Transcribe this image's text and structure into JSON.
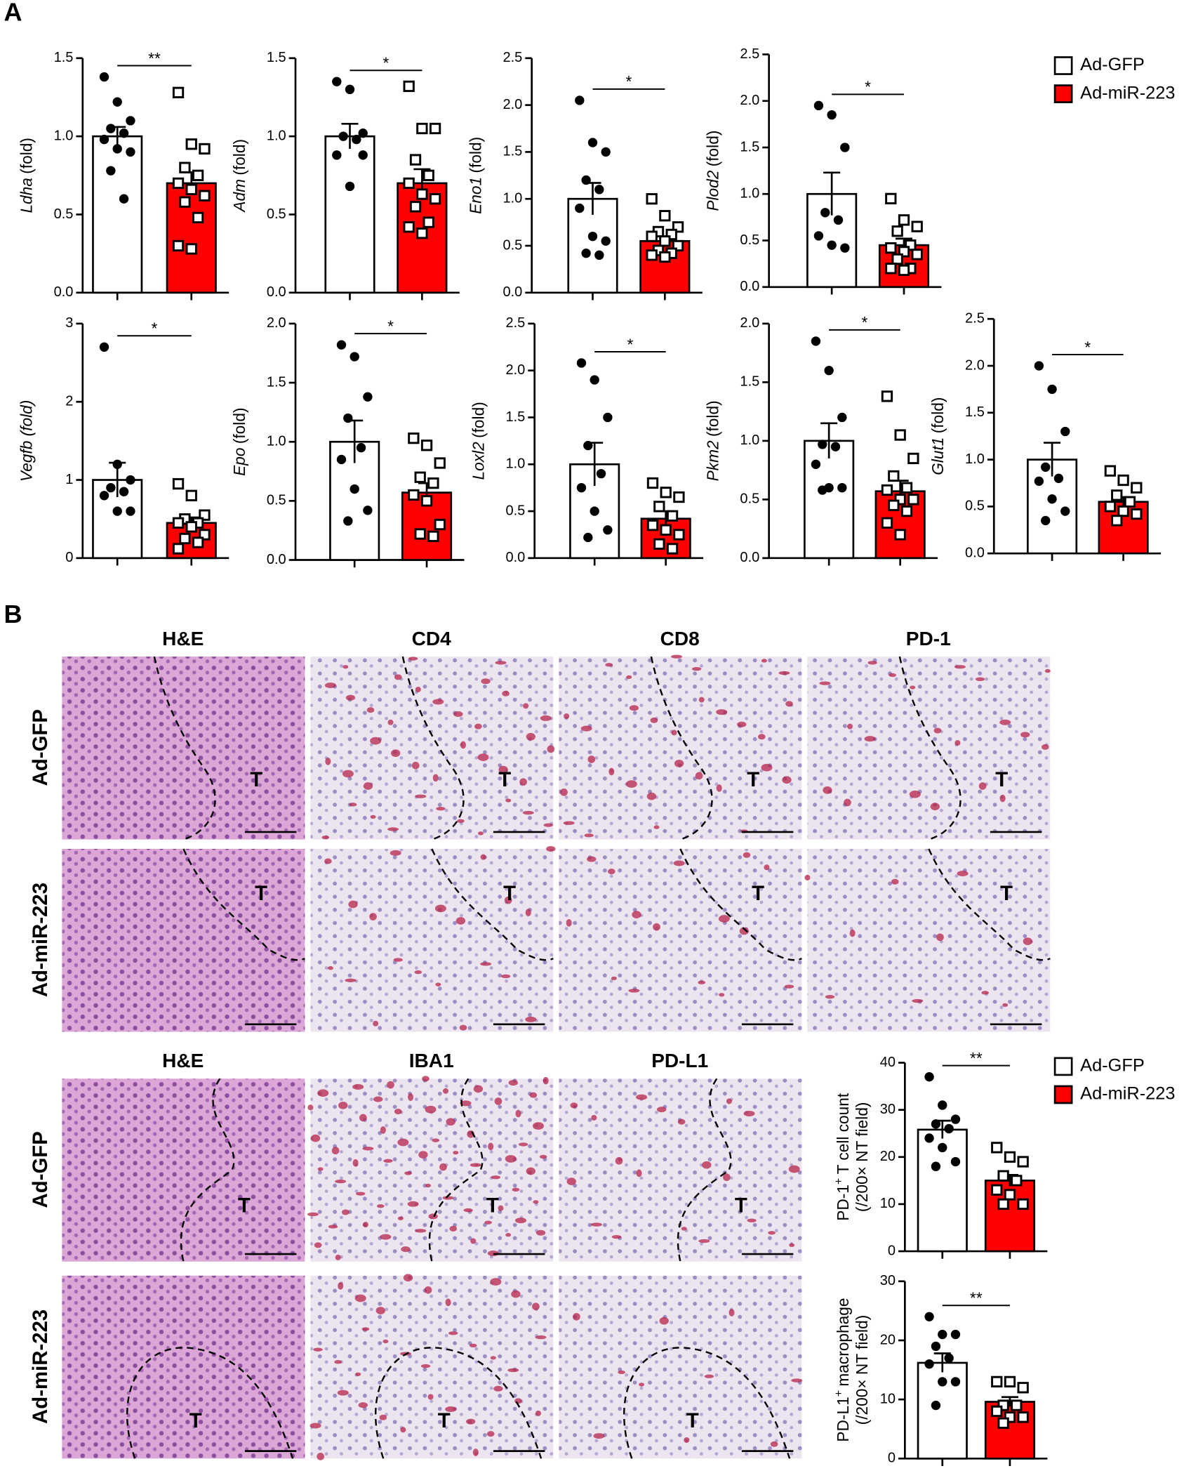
{
  "panel_labels": {
    "a": "A",
    "b": "B"
  },
  "histology": {
    "top": {
      "columns": [
        "H&E",
        "CD4",
        "CD8",
        "PD-1"
      ],
      "rows": [
        "Ad-GFP",
        "Ad-miR-223"
      ]
    },
    "bottom": {
      "columns": [
        "H&E",
        "IBA1",
        "PD-L1"
      ],
      "rows": [
        "Ad-GFP",
        "Ad-miR-223"
      ]
    },
    "tumor_label": "T"
  },
  "chart_data": [
    {
      "type": "bar",
      "ylabel_italic": "Ldha",
      "ylabel": "(fold)",
      "annotation": "**",
      "ylim": [
        0,
        1.5
      ],
      "yticks": [
        {
          "value": 0,
          "label": "0.0"
        },
        0.5,
        {
          "value": 1,
          "label": "1.0"
        },
        1.5
      ],
      "series": [
        {
          "name": "Ad-GFP",
          "color": "#ffffff",
          "values": [
            1.0
          ],
          "errors": [
            0.06
          ],
          "points": [
            1.38,
            1.22,
            1.1,
            1.05,
            1.02,
            0.98,
            0.92,
            0.9,
            0.78,
            0.6
          ]
        },
        {
          "name": "Ad-miR-223",
          "color": "#ff0000",
          "values": [
            0.7
          ],
          "errors": [
            0.07
          ],
          "points": [
            1.28,
            0.95,
            0.92,
            0.8,
            0.75,
            0.7,
            0.66,
            0.62,
            0.58,
            0.48,
            0.3,
            0.28
          ]
        }
      ]
    },
    {
      "type": "bar",
      "ylabel_italic": "Adm",
      "ylabel": "(fold)",
      "annotation": "*",
      "ylim": [
        0,
        1.5
      ],
      "yticks": [
        {
          "value": 0,
          "label": "0.0"
        },
        0.5,
        {
          "value": 1,
          "label": "1.0"
        },
        1.5
      ],
      "series": [
        {
          "name": "Ad-GFP",
          "color": "#ffffff",
          "values": [
            1.0
          ],
          "errors": [
            0.08
          ],
          "points": [
            1.35,
            1.3,
            1.02,
            1.0,
            0.98,
            0.88,
            0.68,
            0.88
          ]
        },
        {
          "name": "Ad-miR-223",
          "color": "#ff0000",
          "values": [
            0.7
          ],
          "errors": [
            0.09
          ],
          "points": [
            1.32,
            1.05,
            1.05,
            0.85,
            0.75,
            0.7,
            0.63,
            0.6,
            0.55,
            0.45,
            0.42,
            0.38
          ]
        }
      ]
    },
    {
      "type": "bar",
      "ylabel_italic": "Eno1",
      "ylabel": "(fold)",
      "annotation": "*",
      "ylim": [
        0,
        2.5
      ],
      "yticks": [
        {
          "value": 0,
          "label": "0.0"
        },
        0.5,
        {
          "value": 1,
          "label": "1.0"
        },
        1.5,
        {
          "value": 2,
          "label": "2.0"
        },
        2.5
      ],
      "series": [
        {
          "name": "Ad-GFP",
          "color": "#ffffff",
          "values": [
            1.0
          ],
          "errors": [
            0.17
          ],
          "points": [
            2.05,
            1.6,
            1.5,
            1.2,
            1.1,
            0.9,
            0.6,
            0.55,
            0.42,
            0.4
          ]
        },
        {
          "name": "Ad-miR-223",
          "color": "#ff0000",
          "values": [
            0.55
          ],
          "errors": [
            0.05
          ],
          "points": [
            1.0,
            0.82,
            0.7,
            0.65,
            0.62,
            0.6,
            0.55,
            0.5,
            0.45,
            0.42,
            0.4,
            0.38
          ]
        }
      ]
    },
    {
      "type": "bar",
      "ylabel_italic": "Plod2",
      "ylabel": "(fold)",
      "annotation": "*",
      "ylim": [
        0,
        2.5
      ],
      "yticks": [
        {
          "value": 0,
          "label": "0.0"
        },
        0.5,
        {
          "value": 1,
          "label": "1.0"
        },
        1.5,
        {
          "value": 2,
          "label": "2.0"
        },
        2.5
      ],
      "series": [
        {
          "name": "Ad-GFP",
          "color": "#ffffff",
          "values": [
            1.0
          ],
          "errors": [
            0.23
          ],
          "points": [
            1.95,
            1.85,
            1.5,
            0.8,
            0.72,
            0.55,
            0.45,
            0.42
          ]
        },
        {
          "name": "Ad-miR-223",
          "color": "#ff0000",
          "values": [
            0.45
          ],
          "errors": [
            0.07
          ],
          "points": [
            0.95,
            0.72,
            0.65,
            0.6,
            0.45,
            0.42,
            0.38,
            0.35,
            0.3,
            0.2,
            0.2,
            0.18
          ]
        }
      ]
    },
    {
      "type": "bar",
      "ylabel_italic": "Vegfb (fold)",
      "annotation": "*",
      "ylim": [
        0,
        3
      ],
      "yticks": [
        0,
        1,
        2,
        3
      ],
      "series": [
        {
          "name": "Ad-GFP",
          "color": "#ffffff",
          "values": [
            1.0
          ],
          "errors": [
            0.22
          ],
          "points": [
            2.7,
            1.2,
            1.0,
            0.9,
            0.85,
            0.8,
            0.6,
            0.6
          ]
        },
        {
          "name": "Ad-miR-223",
          "color": "#ff0000",
          "values": [
            0.45
          ],
          "errors": [
            0.07
          ],
          "points": [
            0.95,
            0.8,
            0.55,
            0.5,
            0.45,
            0.45,
            0.4,
            0.3,
            0.25,
            0.2,
            0.12
          ]
        }
      ]
    },
    {
      "type": "bar",
      "ylabel_italic": "Epo",
      "ylabel": "(fold)",
      "annotation": "*",
      "ylim": [
        0,
        2
      ],
      "yticks": [
        {
          "value": 0,
          "label": "0.0"
        },
        0.5,
        {
          "value": 1,
          "label": "1.0"
        },
        1.5,
        {
          "value": 2,
          "label": "2.0"
        }
      ],
      "series": [
        {
          "name": "Ad-GFP",
          "color": "#ffffff",
          "values": [
            1.0
          ],
          "errors": [
            0.18
          ],
          "points": [
            1.82,
            1.72,
            1.38,
            1.2,
            0.95,
            0.85,
            0.6,
            0.42,
            0.33
          ]
        },
        {
          "name": "Ad-miR-223",
          "color": "#ff0000",
          "values": [
            0.57
          ],
          "errors": [
            0.08
          ],
          "points": [
            1.03,
            0.97,
            0.82,
            0.7,
            0.65,
            0.55,
            0.5,
            0.3,
            0.22,
            0.2
          ]
        }
      ]
    },
    {
      "type": "bar",
      "ylabel_italic": "Loxl2",
      "ylabel": "(fold)",
      "annotation": "*",
      "ylim": [
        0,
        2.5
      ],
      "yticks": [
        {
          "value": 0,
          "label": "0.0"
        },
        0.5,
        {
          "value": 1,
          "label": "1.0"
        },
        1.5,
        {
          "value": 2,
          "label": "2.0"
        },
        2.5
      ],
      "series": [
        {
          "name": "Ad-GFP",
          "color": "#ffffff",
          "values": [
            1.0
          ],
          "errors": [
            0.23
          ],
          "points": [
            2.08,
            1.9,
            1.5,
            1.2,
            0.9,
            0.75,
            0.5,
            0.3,
            0.22
          ]
        },
        {
          "name": "Ad-miR-223",
          "color": "#ff0000",
          "values": [
            0.42
          ],
          "errors": [
            0.08
          ],
          "points": [
            0.8,
            0.7,
            0.65,
            0.55,
            0.45,
            0.35,
            0.3,
            0.25,
            0.15,
            0.1
          ]
        }
      ]
    },
    {
      "type": "bar",
      "ylabel_italic": "Pkm2",
      "ylabel": "(fold)",
      "annotation": "*",
      "ylim": [
        0,
        2
      ],
      "yticks": [
        {
          "value": 0,
          "label": "0.0"
        },
        0.5,
        {
          "value": 1,
          "label": "1.0"
        },
        1.5,
        {
          "value": 2,
          "label": "2.0"
        }
      ],
      "series": [
        {
          "name": "Ad-GFP",
          "color": "#ffffff",
          "values": [
            1.0
          ],
          "errors": [
            0.15
          ],
          "points": [
            1.85,
            1.6,
            1.2,
            0.97,
            0.95,
            0.8,
            0.6,
            0.6,
            0.58
          ]
        },
        {
          "name": "Ad-miR-223",
          "color": "#ff0000",
          "values": [
            0.57
          ],
          "errors": [
            0.09
          ],
          "points": [
            1.38,
            1.05,
            0.85,
            0.7,
            0.6,
            0.58,
            0.5,
            0.5,
            0.45,
            0.4,
            0.3,
            0.2
          ]
        }
      ]
    },
    {
      "type": "bar",
      "ylabel_italic": "Glut1",
      "ylabel": "(fold)",
      "annotation": "*",
      "ylim": [
        0,
        2.5
      ],
      "yticks": [
        {
          "value": 0,
          "label": "0.0"
        },
        0.5,
        {
          "value": 1,
          "label": "1.0"
        },
        1.5,
        {
          "value": 2,
          "label": "2.0"
        },
        2.5
      ],
      "series": [
        {
          "name": "Ad-GFP",
          "color": "#ffffff",
          "values": [
            1.0
          ],
          "errors": [
            0.18
          ],
          "points": [
            2.0,
            1.75,
            1.3,
            0.92,
            0.8,
            0.77,
            0.58,
            0.45,
            0.35
          ]
        },
        {
          "name": "Ad-miR-223",
          "color": "#ff0000",
          "values": [
            0.55
          ],
          "errors": [
            0.05
          ],
          "points": [
            0.88,
            0.78,
            0.7,
            0.62,
            0.55,
            0.5,
            0.45,
            0.42,
            0.35
          ]
        }
      ]
    },
    {
      "type": "bar",
      "ylabel": "PD-1",
      "ylabel_sup": "+",
      "ylabel_rest": "T cell count",
      "ylabel2": "(/200× NT field)",
      "annotation": "**",
      "ylim": [
        0,
        40
      ],
      "yticks": [
        0,
        10,
        20,
        30,
        40
      ],
      "series": [
        {
          "name": "Ad-GFP",
          "color": "#ffffff",
          "values": [
            25.8
          ],
          "errors": [
            1.9
          ],
          "points": [
            37,
            31,
            28,
            27,
            26,
            24,
            22,
            19,
            18
          ]
        },
        {
          "name": "Ad-miR-223",
          "color": "#ff0000",
          "values": [
            15
          ],
          "errors": [
            1.2
          ],
          "points": [
            22,
            20,
            19,
            16,
            15,
            13,
            12,
            10,
            10
          ]
        }
      ]
    },
    {
      "type": "bar",
      "ylabel": "PD-L1",
      "ylabel_sup": "+",
      "ylabel_rest": "macrophage",
      "ylabel2": "(/200× NT field)",
      "annotation": "**",
      "ylim": [
        0,
        30
      ],
      "yticks": [
        0,
        10,
        20,
        30
      ],
      "series": [
        {
          "name": "Ad-GFP",
          "color": "#ffffff",
          "values": [
            16.2
          ],
          "errors": [
            1.6
          ],
          "points": [
            24,
            21,
            21,
            19,
            17,
            16,
            13,
            13,
            9
          ]
        },
        {
          "name": "Ad-miR-223",
          "color": "#ff0000",
          "values": [
            9.6
          ],
          "errors": [
            0.8
          ],
          "points": [
            13,
            13,
            12,
            9,
            9,
            8,
            7,
            7,
            6
          ]
        }
      ]
    }
  ]
}
